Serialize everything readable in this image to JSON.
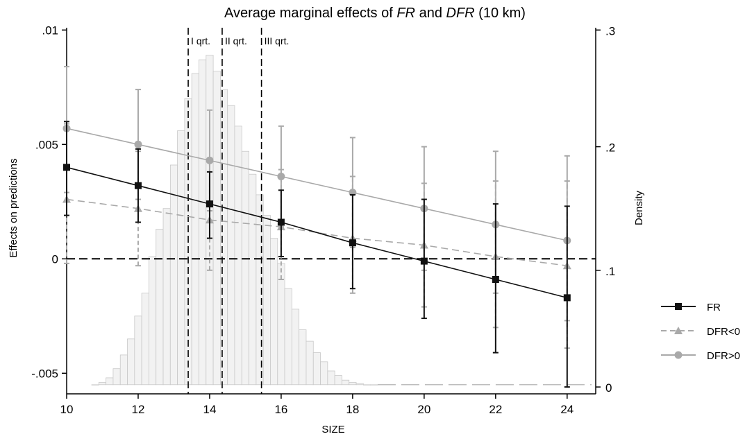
{
  "chart_data": {
    "type": "line",
    "title": {
      "prefix": "Average marginal effects of ",
      "fr": "FR",
      "mid": " and ",
      "dfr": "DFR",
      "suffix": " (10 km)"
    },
    "xlabel": "SIZE",
    "ylabel": "Effects on predictions",
    "y2label": "Density",
    "xlim": [
      10,
      24.8
    ],
    "ylim": [
      -0.0059,
      0.0101
    ],
    "y2lim": [
      -0.0059,
      0.0101
    ],
    "grid": false,
    "legend_position": "right",
    "x_ticks": [
      {
        "value": 10,
        "label": "10"
      },
      {
        "value": 12,
        "label": "12"
      },
      {
        "value": 14,
        "label": "14"
      },
      {
        "value": 16,
        "label": "16"
      },
      {
        "value": 18,
        "label": "18"
      },
      {
        "value": 20,
        "label": "20"
      },
      {
        "value": 22,
        "label": "22"
      },
      {
        "value": 24,
        "label": "24"
      }
    ],
    "y_ticks": [
      {
        "value": 0.01,
        "label": ".01"
      },
      {
        "value": 0.005,
        "label": ".005"
      },
      {
        "value": 0,
        "label": "0"
      },
      {
        "value": -0.005,
        "label": "-.005"
      }
    ],
    "y2_ticks": [
      {
        "value": 0.3,
        "label": ".3",
        "y": 0.01
      },
      {
        "value": 0.2,
        "label": ".2",
        "y": 0.0049
      },
      {
        "value": 0.1,
        "label": ".1",
        "y": -0.0005
      },
      {
        "value": 0,
        "label": "0",
        "y": -0.0056
      }
    ],
    "reference_line": 0,
    "quartiles": [
      {
        "x": 13.4,
        "label": "I qrt."
      },
      {
        "x": 14.35,
        "label": "II qrt."
      },
      {
        "x": 15.45,
        "label": "III qrt."
      }
    ],
    "histogram": {
      "bin_start": 10.7,
      "bin_width": 0.2,
      "base_y": -0.0055,
      "tops": [
        -0.0055,
        -0.0054,
        -0.0052,
        -0.0048,
        -0.0042,
        -0.0035,
        -0.0025,
        -0.0015,
        0.0001,
        0.0013,
        0.0022,
        0.0041,
        0.0056,
        0.007,
        0.0081,
        0.0087,
        0.0089,
        0.0082,
        0.0074,
        0.0067,
        0.0058,
        0.0047,
        0.0037,
        0.0028,
        0.0019,
        0.0009,
        -0.0002,
        -0.0013,
        -0.0022,
        -0.0031,
        -0.0036,
        -0.0041,
        -0.0045,
        -0.0049,
        -0.0051,
        -0.0053,
        -0.0054,
        -0.00545,
        -0.0055,
        -0.0055
      ]
    },
    "series": [
      {
        "name": "FR",
        "color": "#111111",
        "marker": "square",
        "line": "solid",
        "points": [
          {
            "x": 10,
            "y": 0.004,
            "lo": 0.0019,
            "hi": 0.006
          },
          {
            "x": 12,
            "y": 0.0032,
            "lo": 0.0016,
            "hi": 0.0048
          },
          {
            "x": 14,
            "y": 0.0024,
            "lo": 0.0009,
            "hi": 0.0038
          },
          {
            "x": 16,
            "y": 0.0016,
            "lo": 0.0001,
            "hi": 0.003
          },
          {
            "x": 18,
            "y": 0.0007,
            "lo": -0.0013,
            "hi": 0.0028
          },
          {
            "x": 20,
            "y": -0.0001,
            "lo": -0.0026,
            "hi": 0.0026
          },
          {
            "x": 22,
            "y": -0.0009,
            "lo": -0.0041,
            "hi": 0.0024
          },
          {
            "x": 24,
            "y": -0.0017,
            "lo": -0.0056,
            "hi": 0.0023
          }
        ]
      },
      {
        "name": "DFR<0",
        "color": "#a9a9a9",
        "marker": "triangle",
        "line": "dashed",
        "points": [
          {
            "x": 10,
            "y": 0.0026,
            "lo": -0.0002,
            "hi": 0.0059
          },
          {
            "x": 12,
            "y": 0.0022,
            "lo": -0.0003,
            "hi": 0.0047
          },
          {
            "x": 14,
            "y": 0.0017,
            "lo": -0.0005,
            "hi": 0.0044
          },
          {
            "x": 16,
            "y": 0.0014,
            "lo": -0.0009,
            "hi": 0.0039
          },
          {
            "x": 18,
            "y": 0.0009,
            "lo": -0.0015,
            "hi": 0.0036
          },
          {
            "x": 20,
            "y": 0.0006,
            "lo": -0.0021,
            "hi": 0.0033
          },
          {
            "x": 22,
            "y": 0.0001,
            "lo": -0.003,
            "hi": 0.0034
          },
          {
            "x": 24,
            "y": -0.0003,
            "lo": -0.0039,
            "hi": 0.0034
          }
        ]
      },
      {
        "name": "DFR>0",
        "color": "#a9a9a9",
        "marker": "circle",
        "line": "solid",
        "points": [
          {
            "x": 10,
            "y": 0.0057,
            "lo": 0.0029,
            "hi": 0.0084
          },
          {
            "x": 12,
            "y": 0.005,
            "lo": 0.0026,
            "hi": 0.0074
          },
          {
            "x": 14,
            "y": 0.0043,
            "lo": 0.0021,
            "hi": 0.0065
          },
          {
            "x": 16,
            "y": 0.0036,
            "lo": 0.0014,
            "hi": 0.0058
          },
          {
            "x": 18,
            "y": 0.0029,
            "lo": 0.0005,
            "hi": 0.0053
          },
          {
            "x": 20,
            "y": 0.0022,
            "lo": -0.0005,
            "hi": 0.0049
          },
          {
            "x": 22,
            "y": 0.0015,
            "lo": -0.0015,
            "hi": 0.0047
          },
          {
            "x": 24,
            "y": 0.0008,
            "lo": -0.0027,
            "hi": 0.0045
          }
        ]
      }
    ]
  }
}
